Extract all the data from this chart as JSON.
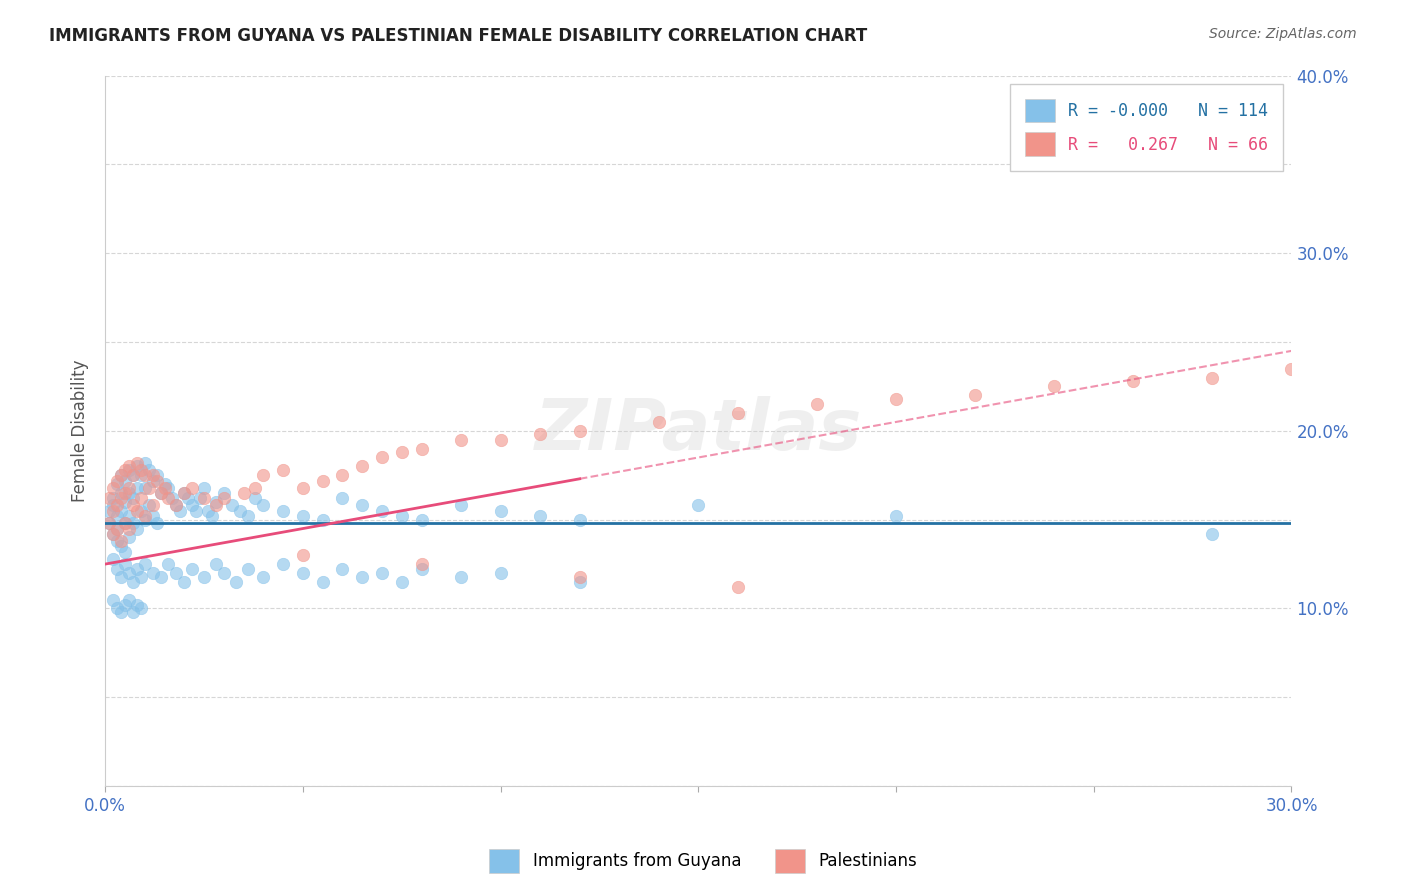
{
  "title": "IMMIGRANTS FROM GUYANA VS PALESTINIAN FEMALE DISABILITY CORRELATION CHART",
  "source": "Source: ZipAtlas.com",
  "ylabel_label": "Female Disability",
  "x_min": 0.0,
  "x_max": 0.3,
  "y_min": 0.0,
  "y_max": 0.4,
  "x_ticks": [
    0.0,
    0.05,
    0.1,
    0.15,
    0.2,
    0.25,
    0.3
  ],
  "y_ticks": [
    0.0,
    0.05,
    0.1,
    0.15,
    0.2,
    0.25,
    0.3,
    0.35,
    0.4
  ],
  "x_tick_labels": [
    "0.0%",
    "",
    "",
    "",
    "",
    "",
    "30.0%"
  ],
  "y_tick_labels_right": [
    "",
    "",
    "10.0%",
    "",
    "20.0%",
    "",
    "30.0%",
    "",
    "40.0%"
  ],
  "blue_color": "#85c1e9",
  "pink_color": "#f1948a",
  "blue_line_color": "#2471a3",
  "pink_line_color": "#e74c7a",
  "legend_R_blue": "-0.000",
  "legend_N_blue": "114",
  "legend_R_pink": "0.267",
  "legend_N_pink": "66",
  "blue_line_y_intercept": 0.148,
  "blue_line_slope": 0.0,
  "pink_line_y_intercept": 0.125,
  "pink_line_slope": 0.4,
  "watermark": "ZIPatlas",
  "blue_scatter_x": [
    0.001,
    0.001,
    0.002,
    0.002,
    0.002,
    0.003,
    0.003,
    0.003,
    0.003,
    0.004,
    0.004,
    0.004,
    0.004,
    0.005,
    0.005,
    0.005,
    0.005,
    0.006,
    0.006,
    0.006,
    0.006,
    0.007,
    0.007,
    0.007,
    0.008,
    0.008,
    0.008,
    0.009,
    0.009,
    0.01,
    0.01,
    0.01,
    0.011,
    0.011,
    0.012,
    0.012,
    0.013,
    0.013,
    0.014,
    0.015,
    0.016,
    0.017,
    0.018,
    0.019,
    0.02,
    0.021,
    0.022,
    0.023,
    0.024,
    0.025,
    0.026,
    0.027,
    0.028,
    0.03,
    0.032,
    0.034,
    0.036,
    0.038,
    0.04,
    0.045,
    0.05,
    0.055,
    0.06,
    0.065,
    0.07,
    0.075,
    0.08,
    0.09,
    0.1,
    0.11,
    0.12,
    0.15,
    0.2,
    0.28,
    0.002,
    0.003,
    0.004,
    0.005,
    0.006,
    0.007,
    0.008,
    0.009,
    0.01,
    0.012,
    0.014,
    0.016,
    0.018,
    0.02,
    0.022,
    0.025,
    0.028,
    0.03,
    0.033,
    0.036,
    0.04,
    0.045,
    0.05,
    0.055,
    0.06,
    0.065,
    0.07,
    0.075,
    0.08,
    0.09,
    0.1,
    0.12,
    0.002,
    0.003,
    0.004,
    0.005,
    0.006,
    0.007,
    0.008,
    0.009
  ],
  "blue_scatter_y": [
    0.155,
    0.148,
    0.162,
    0.142,
    0.158,
    0.17,
    0.152,
    0.145,
    0.138,
    0.175,
    0.165,
    0.155,
    0.135,
    0.172,
    0.16,
    0.148,
    0.132,
    0.178,
    0.165,
    0.152,
    0.14,
    0.175,
    0.162,
    0.148,
    0.18,
    0.168,
    0.145,
    0.175,
    0.155,
    0.182,
    0.168,
    0.15,
    0.178,
    0.158,
    0.172,
    0.152,
    0.175,
    0.148,
    0.165,
    0.17,
    0.168,
    0.162,
    0.158,
    0.155,
    0.165,
    0.162,
    0.158,
    0.155,
    0.162,
    0.168,
    0.155,
    0.152,
    0.16,
    0.165,
    0.158,
    0.155,
    0.152,
    0.162,
    0.158,
    0.155,
    0.152,
    0.15,
    0.162,
    0.158,
    0.155,
    0.152,
    0.15,
    0.158,
    0.155,
    0.152,
    0.15,
    0.158,
    0.152,
    0.142,
    0.128,
    0.122,
    0.118,
    0.125,
    0.12,
    0.115,
    0.122,
    0.118,
    0.125,
    0.12,
    0.118,
    0.125,
    0.12,
    0.115,
    0.122,
    0.118,
    0.125,
    0.12,
    0.115,
    0.122,
    0.118,
    0.125,
    0.12,
    0.115,
    0.122,
    0.118,
    0.12,
    0.115,
    0.122,
    0.118,
    0.12,
    0.115,
    0.105,
    0.1,
    0.098,
    0.102,
    0.105,
    0.098,
    0.102,
    0.1
  ],
  "pink_scatter_x": [
    0.001,
    0.001,
    0.002,
    0.002,
    0.002,
    0.003,
    0.003,
    0.003,
    0.004,
    0.004,
    0.004,
    0.005,
    0.005,
    0.005,
    0.006,
    0.006,
    0.006,
    0.007,
    0.007,
    0.008,
    0.008,
    0.009,
    0.009,
    0.01,
    0.01,
    0.011,
    0.012,
    0.012,
    0.013,
    0.014,
    0.015,
    0.016,
    0.018,
    0.02,
    0.022,
    0.025,
    0.028,
    0.03,
    0.035,
    0.038,
    0.04,
    0.045,
    0.05,
    0.055,
    0.06,
    0.065,
    0.07,
    0.075,
    0.08,
    0.09,
    0.1,
    0.11,
    0.12,
    0.14,
    0.16,
    0.18,
    0.2,
    0.22,
    0.24,
    0.26,
    0.28,
    0.3,
    0.05,
    0.08,
    0.12,
    0.16
  ],
  "pink_scatter_y": [
    0.162,
    0.148,
    0.168,
    0.155,
    0.142,
    0.172,
    0.158,
    0.145,
    0.175,
    0.162,
    0.138,
    0.178,
    0.165,
    0.148,
    0.18,
    0.168,
    0.145,
    0.175,
    0.158,
    0.182,
    0.155,
    0.178,
    0.162,
    0.175,
    0.152,
    0.168,
    0.175,
    0.158,
    0.172,
    0.165,
    0.168,
    0.162,
    0.158,
    0.165,
    0.168,
    0.162,
    0.158,
    0.162,
    0.165,
    0.168,
    0.175,
    0.178,
    0.168,
    0.172,
    0.175,
    0.18,
    0.185,
    0.188,
    0.19,
    0.195,
    0.195,
    0.198,
    0.2,
    0.205,
    0.21,
    0.215,
    0.218,
    0.22,
    0.225,
    0.228,
    0.23,
    0.235,
    0.13,
    0.125,
    0.118,
    0.112
  ]
}
